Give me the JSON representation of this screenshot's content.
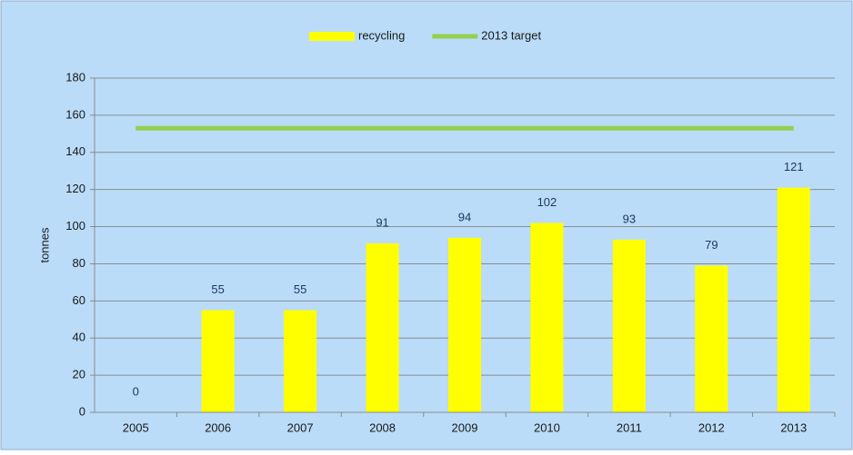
{
  "chart_data": {
    "type": "bar",
    "categories": [
      "2005",
      "2006",
      "2007",
      "2008",
      "2009",
      "2010",
      "2011",
      "2012",
      "2013"
    ],
    "series": [
      {
        "name": "recycling",
        "type": "bar",
        "color": "#ffff00",
        "values": [
          0,
          55,
          55,
          91,
          94,
          102,
          93,
          79,
          121
        ]
      },
      {
        "name": "2013 target",
        "type": "line",
        "color": "#92d050",
        "values": [
          153,
          153,
          153,
          153,
          153,
          153,
          153,
          153,
          153
        ]
      }
    ],
    "ylabel": "tonnes",
    "ylim": [
      0,
      180
    ],
    "yticks": [
      0,
      20,
      40,
      60,
      80,
      100,
      120,
      140,
      160,
      180
    ],
    "grid": true,
    "legend": "top",
    "data_labels": [
      true,
      false
    ]
  }
}
